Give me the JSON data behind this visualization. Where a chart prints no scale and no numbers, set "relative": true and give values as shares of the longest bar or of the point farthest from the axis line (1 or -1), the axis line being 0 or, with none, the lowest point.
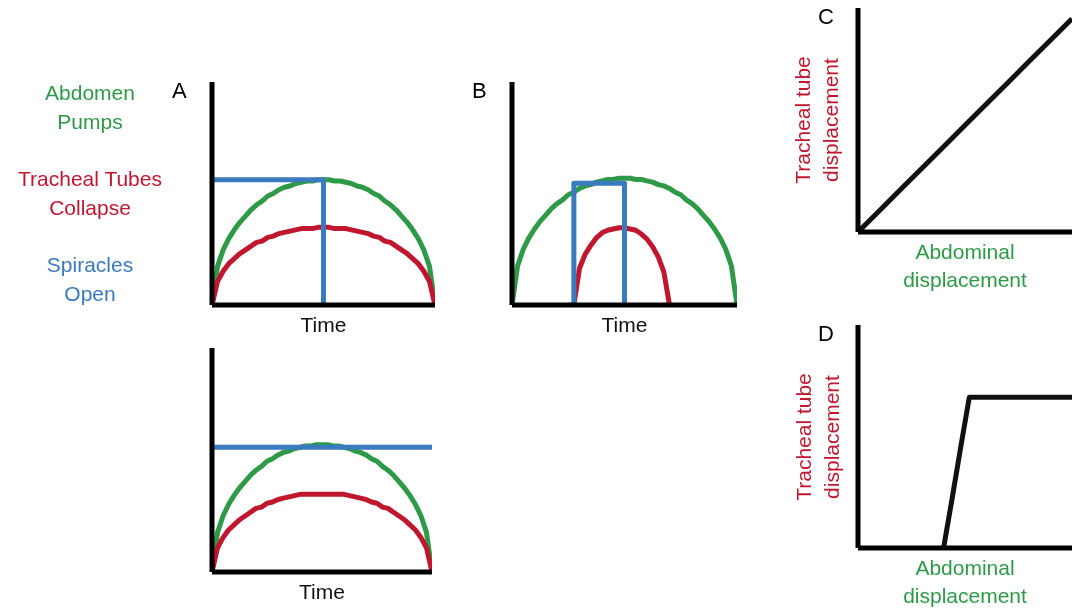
{
  "chart_data": [
    {
      "type": "line",
      "title": "A",
      "xlabel": "Time",
      "relative": true,
      "tick_labels": false,
      "categories": [
        null,
        null,
        null,
        null,
        null,
        null,
        null,
        null,
        null,
        null,
        null,
        null,
        null,
        null,
        null,
        null,
        null,
        null,
        null,
        null,
        null,
        null,
        null,
        null,
        null,
        null,
        null,
        null,
        null,
        null,
        null,
        null,
        null,
        null,
        null,
        null,
        null,
        null,
        null,
        null,
        null
      ],
      "series": [
        {
          "name": "Abdomen Pumps",
          "color": "#2e9a48",
          "values": [
            0,
            0.31,
            0.44,
            0.53,
            0.6,
            0.66,
            0.71,
            0.76,
            0.8,
            0.83,
            0.87,
            0.89,
            0.92,
            0.94,
            0.95,
            0.97,
            0.98,
            0.99,
            0.99,
            1,
            1,
            1,
            0.99,
            0.99,
            0.98,
            0.97,
            0.95,
            0.94,
            0.92,
            0.89,
            0.87,
            0.83,
            0.8,
            0.76,
            0.71,
            0.66,
            0.6,
            0.53,
            0.44,
            0.31,
            0
          ]
        },
        {
          "name": "Tracheal Tubes Collapse",
          "color": "#c0172f",
          "values": [
            0,
            0.19,
            0.27,
            0.33,
            0.37,
            0.41,
            0.44,
            0.47,
            0.5,
            0.51,
            0.54,
            0.55,
            0.57,
            0.58,
            0.59,
            0.6,
            0.61,
            0.61,
            0.61,
            0.62,
            0.62,
            0.62,
            0.61,
            0.61,
            0.61,
            0.6,
            0.59,
            0.58,
            0.57,
            0.55,
            0.54,
            0.51,
            0.5,
            0.47,
            0.44,
            0.41,
            0.37,
            0.33,
            0.27,
            0.19,
            0
          ]
        },
        {
          "name": "Spiracles Open",
          "type": "step",
          "color": "#3a7abf",
          "values": [
            1,
            1,
            1,
            1,
            1,
            1,
            1,
            1,
            1,
            1,
            1,
            1,
            1,
            1,
            1,
            1,
            1,
            1,
            1,
            1,
            0,
            null,
            null,
            null,
            null,
            null,
            null,
            null,
            null,
            null,
            null,
            null,
            null,
            null,
            null,
            null,
            null,
            null,
            null,
            null,
            null
          ]
        }
      ]
    },
    {
      "type": "line",
      "title": "B",
      "xlabel": "Time",
      "relative": true,
      "tick_labels": false,
      "categories": [
        null,
        null,
        null,
        null,
        null,
        null,
        null,
        null,
        null,
        null,
        null,
        null,
        null,
        null,
        null,
        null,
        null,
        null,
        null,
        null,
        null,
        null,
        null,
        null,
        null,
        null,
        null,
        null,
        null,
        null,
        null,
        null,
        null,
        null,
        null,
        null,
        null,
        null,
        null,
        null,
        null
      ],
      "series": [
        {
          "color": "#2e9a48",
          "values": [
            0,
            0.31,
            0.44,
            0.53,
            0.6,
            0.66,
            0.71,
            0.76,
            0.8,
            0.83,
            0.87,
            0.89,
            0.92,
            0.94,
            0.95,
            0.97,
            0.98,
            0.99,
            0.99,
            1,
            1,
            1,
            0.99,
            0.99,
            0.98,
            0.97,
            0.95,
            0.94,
            0.92,
            0.89,
            0.87,
            0.83,
            0.8,
            0.76,
            0.71,
            0.66,
            0.6,
            0.53,
            0.44,
            0.31,
            0
          ]
        },
        {
          "color": "#c0172f",
          "values": [
            null,
            null,
            null,
            null,
            null,
            null,
            null,
            null,
            null,
            null,
            null,
            0,
            0.29,
            0.4,
            0.47,
            0.53,
            0.57,
            0.59,
            0.6,
            0.61,
            0.61,
            0.6,
            0.59,
            0.56,
            0.52,
            0.46,
            0.38,
            0.26,
            0,
            null,
            null,
            null,
            null,
            null,
            null,
            null,
            null,
            null,
            null,
            null,
            null
          ]
        },
        {
          "type": "step",
          "color": "#3a7abf",
          "values": [
            null,
            null,
            null,
            null,
            null,
            null,
            null,
            null,
            null,
            null,
            0,
            0.96,
            0.96,
            0.96,
            0.96,
            0.96,
            0.96,
            0.96,
            0.96,
            0.96,
            0,
            null,
            null,
            null,
            null,
            null,
            null,
            null,
            null,
            null,
            null,
            null,
            null,
            null,
            null,
            null,
            null,
            null,
            null,
            null,
            null
          ]
        }
      ]
    },
    {
      "type": "line",
      "title": "C",
      "xlabel": "Abdominal displacement",
      "ylabel": "Tracheal tube displacement",
      "relative": true,
      "tick_labels": false,
      "categories": [
        null,
        null,
        null,
        null,
        null,
        null,
        null,
        null,
        null,
        null,
        null
      ],
      "series": [
        {
          "color": "#111111",
          "values": [
            0,
            0.1,
            0.2,
            0.3,
            0.4,
            0.5,
            0.6,
            0.7,
            0.8,
            0.9,
            1
          ]
        }
      ]
    },
    {
      "type": "line",
      "xlabel": "Time",
      "relative": true,
      "tick_labels": false,
      "categories": [
        null,
        null,
        null,
        null,
        null,
        null,
        null,
        null,
        null,
        null,
        null,
        null,
        null,
        null,
        null,
        null,
        null,
        null,
        null,
        null,
        null,
        null,
        null,
        null,
        null,
        null,
        null,
        null,
        null,
        null,
        null,
        null,
        null,
        null,
        null,
        null,
        null,
        null,
        null,
        null,
        null
      ],
      "series": [
        {
          "color": "#2e9a48",
          "values": [
            0,
            0.31,
            0.44,
            0.53,
            0.6,
            0.66,
            0.71,
            0.76,
            0.8,
            0.83,
            0.87,
            0.89,
            0.92,
            0.94,
            0.95,
            0.97,
            0.98,
            0.99,
            0.99,
            1,
            1,
            1,
            0.99,
            0.99,
            0.98,
            0.97,
            0.95,
            0.94,
            0.92,
            0.89,
            0.87,
            0.83,
            0.8,
            0.76,
            0.71,
            0.66,
            0.6,
            0.53,
            0.44,
            0.31,
            0
          ]
        },
        {
          "color": "#c0172f",
          "values": [
            0,
            0.19,
            0.27,
            0.33,
            0.37,
            0.41,
            0.44,
            0.47,
            0.5,
            0.51,
            0.54,
            0.55,
            0.57,
            0.58,
            0.59,
            0.6,
            0.61,
            0.61,
            0.61,
            0.61,
            0.61,
            0.61,
            0.61,
            0.61,
            0.61,
            0.6,
            0.59,
            0.58,
            0.57,
            0.55,
            0.54,
            0.51,
            0.5,
            0.47,
            0.44,
            0.41,
            0.37,
            0.33,
            0.27,
            0.19,
            0
          ]
        },
        {
          "color": "#3a7abf",
          "values": [
            0.98,
            0.98,
            0.98,
            0.98,
            0.98,
            0.98,
            0.98,
            0.98,
            0.98,
            0.98,
            0.98,
            0.98,
            0.98,
            0.98,
            0.98,
            0.98,
            0.98,
            0.98,
            0.98,
            0.98,
            0.98,
            0.98,
            0.98,
            0.98,
            0.98,
            0.98,
            0.98,
            0.98,
            0.98,
            0.98,
            0.98,
            0.98,
            0.98,
            0.98,
            0.98,
            0.98,
            0.98,
            0.98,
            0.98,
            0.98,
            0.98
          ]
        }
      ]
    },
    {
      "type": "line",
      "title": "D",
      "xlabel": "Abdominal displacement",
      "ylabel": "Tracheal tube displacement",
      "relative": true,
      "tick_labels": false,
      "categories": [
        null,
        null,
        null,
        null,
        null,
        null,
        null,
        null,
        null,
        null,
        null,
        null,
        null,
        null,
        null,
        null,
        null,
        null,
        null,
        null,
        null,
        null,
        null,
        null,
        null,
        null
      ],
      "series": [
        {
          "color": "#111111",
          "values": [
            null,
            null,
            null,
            null,
            null,
            null,
            null,
            null,
            null,
            null,
            0,
            0.33,
            0.67,
            1,
            1,
            1,
            1,
            1,
            1,
            1,
            1,
            1,
            1,
            1,
            1,
            1
          ]
        }
      ]
    }
  ]
}
